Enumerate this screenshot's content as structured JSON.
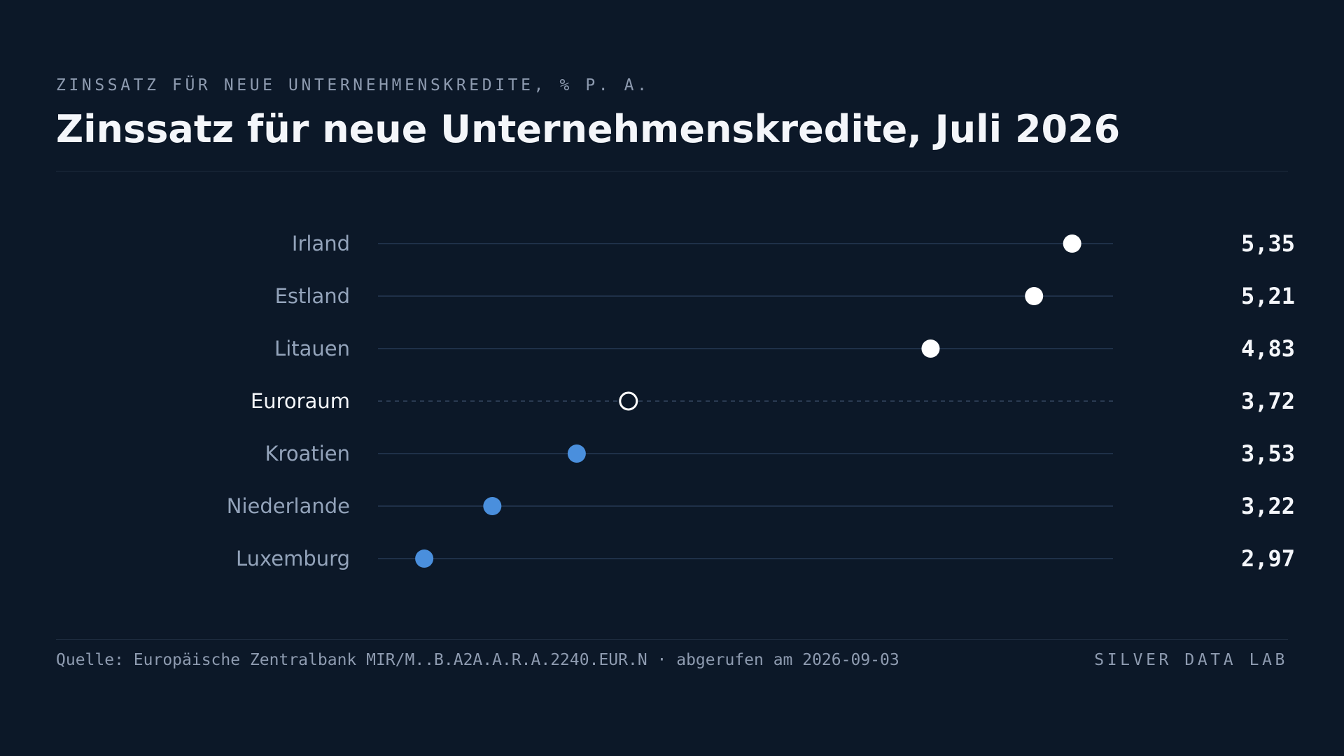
{
  "header": {
    "kicker": "ZINSSATZ FÜR NEUE UNTERNEHMENSKREDITE, % P. A."
  },
  "chart_data": {
    "type": "dot",
    "title": "Zinssatz für neue Unternehmenskredite, Juli 2026",
    "xlim": [
      2.8,
      5.5
    ],
    "categories": [
      "Irland",
      "Estland",
      "Litauen",
      "Euroraum",
      "Kroatien",
      "Niederlande",
      "Luxemburg"
    ],
    "values": [
      5.35,
      5.21,
      4.83,
      3.72,
      3.53,
      3.22,
      2.97
    ],
    "value_labels": [
      "5,35",
      "5,21",
      "4,83",
      "3,72",
      "3,53",
      "3,22",
      "2,97"
    ],
    "reference_category": "Euroraum",
    "colors": {
      "above_reference": "#ffffff",
      "below_reference": "#4a8fdd",
      "reference": "#ffffff"
    }
  },
  "footer": {
    "source": "Quelle: Europäische Zentralbank MIR/M..B.A2A.A.R.A.2240.EUR.N · abgerufen am 2026-09-03",
    "brand": "SILVER DATA LAB"
  }
}
